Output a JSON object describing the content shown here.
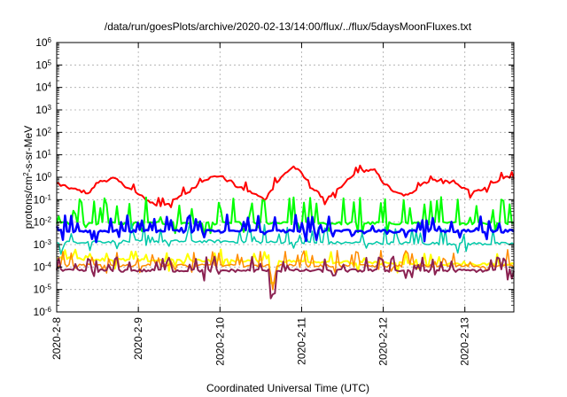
{
  "chart_data": {
    "type": "line",
    "title": "/data/run/goesPlots/archive/2020-02-13/14:00/flux/../flux/5daysMoonFluxes.txt",
    "xlabel": "Coordinated Universal Time (UTC)",
    "ylabel_main": "protons/cm",
    "ylabel_sup": "2",
    "ylabel_rest": "-s-sr-MeV",
    "y_scale": "log",
    "ylim_exp": [
      -6,
      6
    ],
    "y_tick_exponents": [
      -6,
      -5,
      -4,
      -3,
      -2,
      -1,
      0,
      1,
      2,
      3,
      4,
      5,
      6
    ],
    "y_tick_base": "10",
    "xlim_days": [
      0,
      5.6
    ],
    "x_tick_days": [
      0,
      1,
      2,
      3,
      4,
      5
    ],
    "x_tick_labels": [
      "2020-2-8",
      "2020-2-9",
      "2020-2-10",
      "2020-2-11",
      "2020-2-12",
      "2020-2-13"
    ],
    "grid": true,
    "series": [
      {
        "color": "#ff0000",
        "width": 2,
        "base": [
          [
            0,
            0.5
          ],
          [
            0.2,
            0.3
          ],
          [
            0.4,
            0.2
          ],
          [
            0.5,
            0.6
          ],
          [
            0.7,
            0.9
          ],
          [
            0.9,
            0.3
          ],
          [
            1.1,
            0.1
          ],
          [
            1.25,
            0.05
          ],
          [
            1.4,
            0.08
          ],
          [
            1.6,
            0.2
          ],
          [
            1.8,
            0.8
          ],
          [
            2.0,
            1.2
          ],
          [
            2.2,
            0.4
          ],
          [
            2.4,
            0.2
          ],
          [
            2.55,
            0.1
          ],
          [
            2.7,
            0.6
          ],
          [
            2.8,
            1.5
          ],
          [
            2.9,
            3
          ],
          [
            3.0,
            1.5
          ],
          [
            3.1,
            0.4
          ],
          [
            3.3,
            0.1
          ],
          [
            3.5,
            0.4
          ],
          [
            3.7,
            2
          ],
          [
            3.9,
            2
          ],
          [
            4.0,
            0.6
          ],
          [
            4.15,
            0.2
          ],
          [
            4.3,
            0.15
          ],
          [
            4.5,
            0.6
          ],
          [
            4.7,
            0.8
          ],
          [
            4.9,
            0.5
          ],
          [
            5.1,
            0.2
          ],
          [
            5.3,
            0.4
          ],
          [
            5.5,
            1
          ],
          [
            5.6,
            1
          ]
        ],
        "spike_count": 30,
        "spike_span": [
          0.5,
          2.5
        ]
      },
      {
        "color": "#00ff00",
        "width": 2,
        "base": [
          [
            0,
            0.009
          ],
          [
            5.6,
            0.009
          ]
        ],
        "spike_count": 65,
        "spike_span": [
          1.5,
          15
        ]
      },
      {
        "color": "#00c8a8",
        "width": 1.5,
        "base": [
          [
            0,
            0.0013
          ],
          [
            1.0,
            0.0014
          ],
          [
            2.0,
            0.0014
          ],
          [
            3.0,
            0.0012
          ],
          [
            4.0,
            0.0012
          ],
          [
            5.0,
            0.0011
          ],
          [
            5.6,
            0.0011
          ]
        ],
        "spike_count": 45,
        "spike_span": [
          1.5,
          6
        ]
      },
      {
        "color": "#0000ff",
        "width": 2.5,
        "base": [
          [
            0,
            0.004
          ],
          [
            5.6,
            0.004
          ]
        ],
        "spike_count": 75,
        "spike_span": [
          0.3,
          5
        ]
      },
      {
        "color": "#ffff00",
        "width": 2,
        "base": [
          [
            0,
            0.00025
          ],
          [
            1.0,
            0.0002
          ],
          [
            2.0,
            0.0002
          ],
          [
            3.0,
            0.00018
          ],
          [
            4.0,
            0.00015
          ],
          [
            5.0,
            0.00013
          ],
          [
            5.6,
            0.00013
          ]
        ],
        "spike_count": 40,
        "spike_span": [
          1.3,
          3
        ]
      },
      {
        "color": "#ff8c00",
        "width": 1.5,
        "base": [
          [
            0,
            0.00012
          ],
          [
            5.6,
            0.00011
          ]
        ],
        "spike_count": 55,
        "spike_span": [
          1.5,
          5
        ]
      },
      {
        "color": "#8b2252",
        "width": 2,
        "base": [
          [
            0,
            7e-05
          ],
          [
            5.6,
            7e-05
          ]
        ],
        "spike_count": 60,
        "spike_span": [
          1.5,
          4
        ]
      }
    ]
  }
}
